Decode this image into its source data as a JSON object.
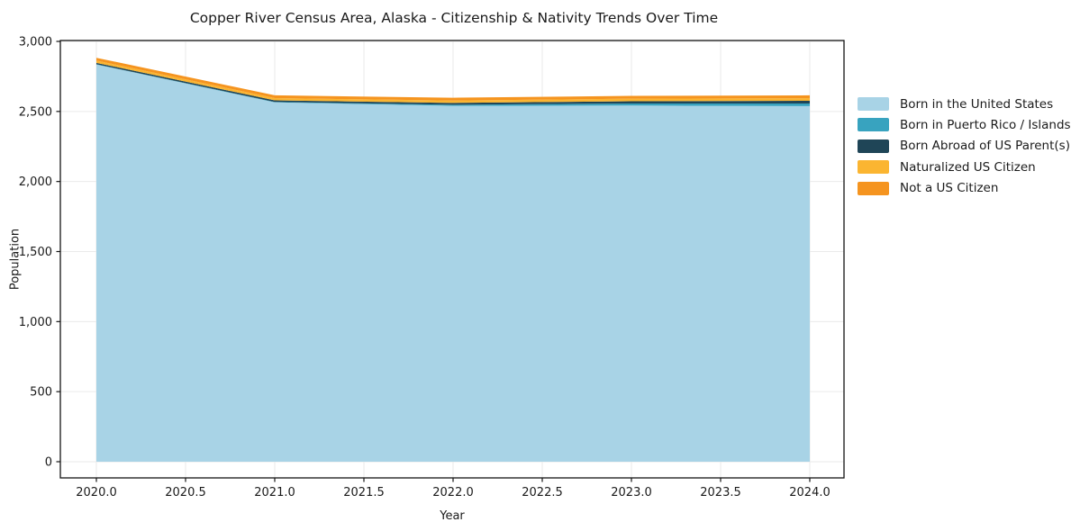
{
  "chart_data": {
    "type": "area",
    "stacked": true,
    "title": "Copper River Census Area, Alaska - Citizenship & Nativity Trends Over Time",
    "xlabel": "Year",
    "ylabel": "Population",
    "x": [
      2020,
      2021,
      2022,
      2023,
      2024
    ],
    "series": [
      {
        "name": "Born in the United States",
        "color": "#A8D3E6",
        "values": [
          2835,
          2565,
          2540,
          2542,
          2538
        ]
      },
      {
        "name": "Born in Puerto Rico / Islands",
        "color": "#38A3BF",
        "values": [
          2,
          3,
          8,
          15,
          19
        ]
      },
      {
        "name": "Born Abroad of US Parent(s)",
        "color": "#1F4557",
        "values": [
          10,
          11,
          13,
          16,
          19
        ]
      },
      {
        "name": "Naturalized US Citizen",
        "color": "#FBB531",
        "values": [
          16,
          16,
          17,
          18,
          19
        ]
      },
      {
        "name": "Not a US Citizen",
        "color": "#F5941F",
        "values": [
          20,
          20,
          20,
          20,
          20
        ]
      }
    ],
    "x_ticks": {
      "values": [
        2020.0,
        2020.5,
        2021.0,
        2021.5,
        2022.0,
        2022.5,
        2023.0,
        2023.5,
        2024.0
      ],
      "labels": [
        "2020.0",
        "2020.5",
        "2021.0",
        "2021.5",
        "2022.0",
        "2022.5",
        "2023.0",
        "2023.5",
        "2024.0"
      ]
    },
    "y_ticks": {
      "values": [
        0,
        500,
        1000,
        1500,
        2000,
        2500,
        3000
      ],
      "labels": [
        "0",
        "500",
        "1,000",
        "1,500",
        "2,000",
        "2,500",
        "3,000"
      ]
    },
    "ylim": [
      0,
      3000
    ],
    "xlim": [
      2019.8,
      2024.2
    ],
    "grid": true,
    "legend_position": "right"
  },
  "colors": {
    "spine": "#141414",
    "grid": "#eaeaea",
    "text": "#1a1a1a",
    "background": "#ffffff"
  }
}
